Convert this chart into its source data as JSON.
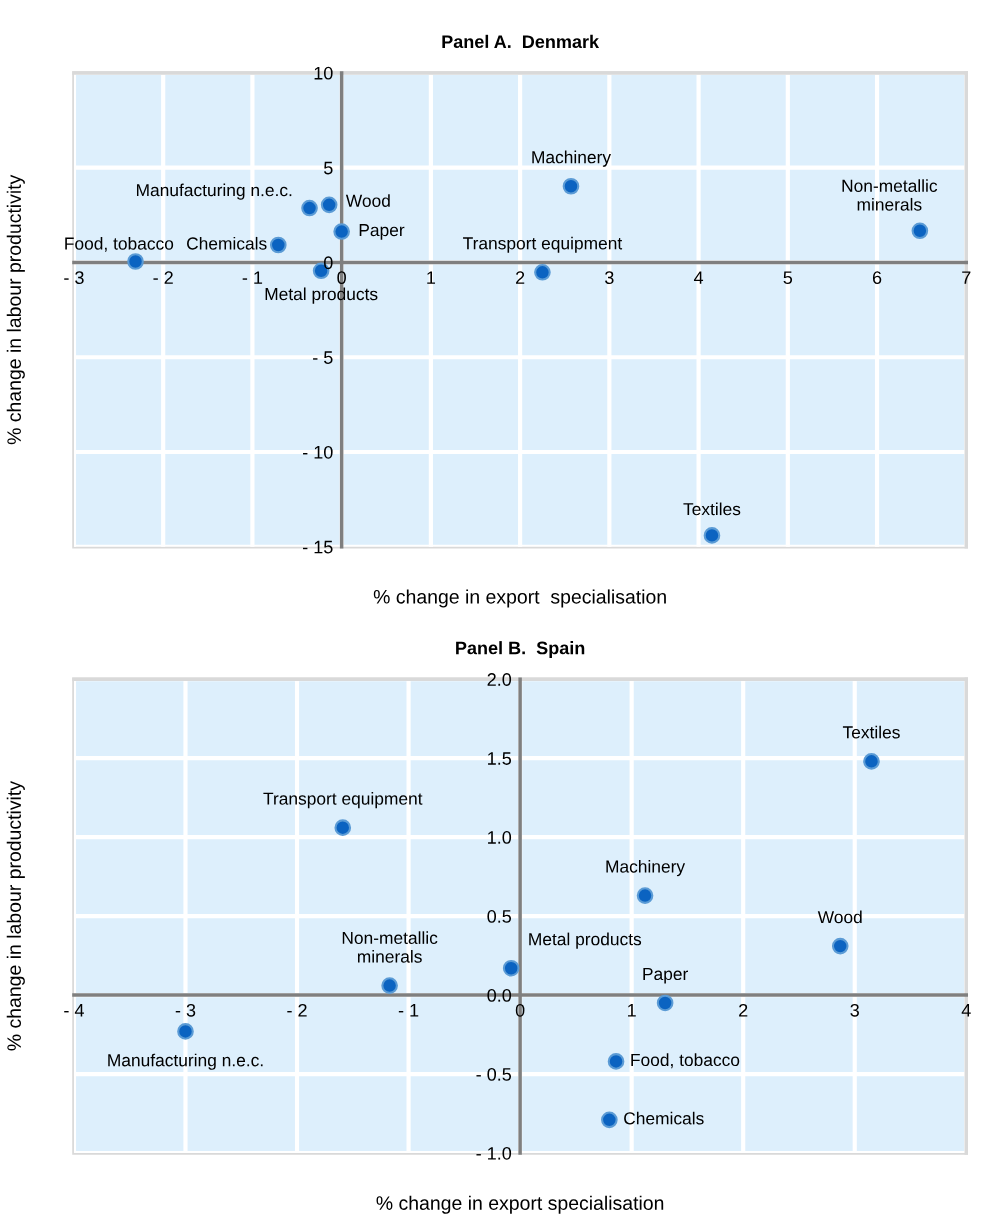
{
  "chart_data": [
    {
      "type": "scatter",
      "title": "Panel A.  Denmark",
      "xlabel": "% change in export  specialisation",
      "ylabel": "% change in labour productivity",
      "marker": "circle",
      "grid": true,
      "color": "#0b63c1",
      "x": [
        -2.31,
        -0.71,
        -0.36,
        -0.14,
        0.0,
        -0.23,
        2.57,
        2.25,
        6.48,
        4.15
      ],
      "values": [
        0.05,
        0.92,
        2.87,
        3.04,
        1.63,
        -0.44,
        4.02,
        -0.52,
        1.67,
        -14.4
      ],
      "xlim": [
        -3,
        7
      ],
      "ylim": [
        -15,
        10
      ],
      "xticks": [
        {
          "value": -3,
          "label": "- 3"
        },
        {
          "value": -2,
          "label": "- 2"
        },
        {
          "value": -1,
          "label": "- 1"
        },
        0,
        1,
        2,
        3,
        4,
        5,
        6,
        7
      ],
      "yticks": [
        {
          "value": -15,
          "label": "- 15"
        },
        {
          "value": -10,
          "label": "- 10"
        },
        {
          "value": -5,
          "label": "- 5"
        },
        0,
        5,
        10
      ],
      "annotations": [
        {
          "text": "Food, tobacco",
          "x": -2.31,
          "y": 0.05
        },
        {
          "text": "Chemicals",
          "x": -0.71,
          "y": 0.92
        },
        {
          "text": "Manufacturing n.e.c.",
          "x": -0.36,
          "y": 2.87
        },
        {
          "text": "Wood",
          "x": -0.14,
          "y": 3.04
        },
        {
          "text": "Paper",
          "x": 0.0,
          "y": 1.63
        },
        {
          "text": "Metal products",
          "x": -0.23,
          "y": -0.44
        },
        {
          "text": "Machinery",
          "x": 2.57,
          "y": 4.02
        },
        {
          "text": "Transport equipment",
          "x": 2.25,
          "y": -0.52
        },
        {
          "text": "Non-metallic\nminerals",
          "x": 6.48,
          "y": 1.67
        },
        {
          "text": "Textiles",
          "x": 4.15,
          "y": -14.4
        }
      ]
    },
    {
      "type": "scatter",
      "title": "Panel B.  Spain",
      "xlabel": "% change in export specialisation",
      "ylabel": "% change in labour productivity",
      "marker": "circle",
      "grid": true,
      "color": "#0b63c1",
      "x": [
        -3.0,
        -1.59,
        -1.17,
        -0.08,
        1.12,
        3.15,
        2.87,
        1.3,
        0.86,
        0.8
      ],
      "values": [
        -0.23,
        1.06,
        0.06,
        0.17,
        0.63,
        1.48,
        0.31,
        -0.05,
        -0.42,
        -0.79
      ],
      "xlim": [
        -4,
        4
      ],
      "ylim": [
        -1.0,
        2.0
      ],
      "xticks": [
        {
          "value": -4,
          "label": "- 4"
        },
        {
          "value": -3,
          "label": "- 3"
        },
        {
          "value": -2,
          "label": "- 2"
        },
        {
          "value": -1,
          "label": "- 1"
        },
        0,
        1,
        2,
        3,
        4
      ],
      "yticks": [
        {
          "value": -1.0,
          "label": "- 1.0"
        },
        {
          "value": -0.5,
          "label": "- 0.5"
        },
        {
          "value": 0.0,
          "label": "0.0"
        },
        {
          "value": 0.5,
          "label": "0.5"
        },
        {
          "value": 1.0,
          "label": "1.0"
        },
        {
          "value": 1.5,
          "label": "1.5"
        },
        {
          "value": 2.0,
          "label": "2.0"
        }
      ],
      "annotations": [
        {
          "text": "Manufacturing n.e.c.",
          "x": -3.0,
          "y": -0.23
        },
        {
          "text": "Transport equipment",
          "x": -1.59,
          "y": 1.06
        },
        {
          "text": "Non-metallic\nminerals",
          "x": -1.17,
          "y": 0.06
        },
        {
          "text": "Metal products",
          "x": -0.08,
          "y": 0.17
        },
        {
          "text": "Machinery",
          "x": 1.12,
          "y": 0.63
        },
        {
          "text": "Textiles",
          "x": 3.15,
          "y": 1.48
        },
        {
          "text": "Wood",
          "x": 2.87,
          "y": 0.31
        },
        {
          "text": "Paper",
          "x": 1.3,
          "y": -0.05
        },
        {
          "text": "Food, tobacco",
          "x": 0.86,
          "y": -0.42
        },
        {
          "text": "Chemicals",
          "x": 0.8,
          "y": -0.79
        }
      ]
    }
  ]
}
